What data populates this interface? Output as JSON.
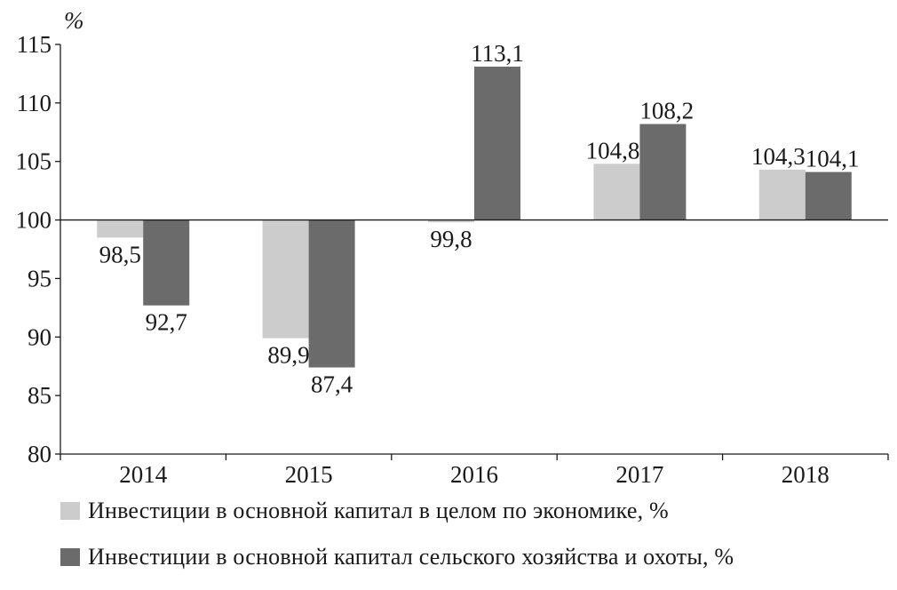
{
  "chart_data": {
    "type": "bar",
    "unit_label": "%",
    "categories": [
      "2014",
      "2015",
      "2016",
      "2017",
      "2018"
    ],
    "baseline": 100,
    "ylim": [
      80,
      115
    ],
    "yticks": [
      "80",
      "85",
      "90",
      "95",
      "100",
      "105",
      "110",
      "115"
    ],
    "series": [
      {
        "name": "Инвестиции в основной капитал в целом по экономике, %",
        "color": "#cccccc",
        "values": [
          98.5,
          89.9,
          99.8,
          104.8,
          104.3
        ],
        "labels": [
          "98,5",
          "89,9",
          "99,8",
          "104,8",
          "104,3"
        ]
      },
      {
        "name": "Инвестиции в основной капитал сельского хозяйства и охоты, %",
        "color": "#6b6b6b",
        "values": [
          92.7,
          87.4,
          113.1,
          108.2,
          104.1
        ],
        "labels": [
          "92,7",
          "87,4",
          "113,1",
          "108,2",
          "104,1"
        ]
      }
    ]
  }
}
